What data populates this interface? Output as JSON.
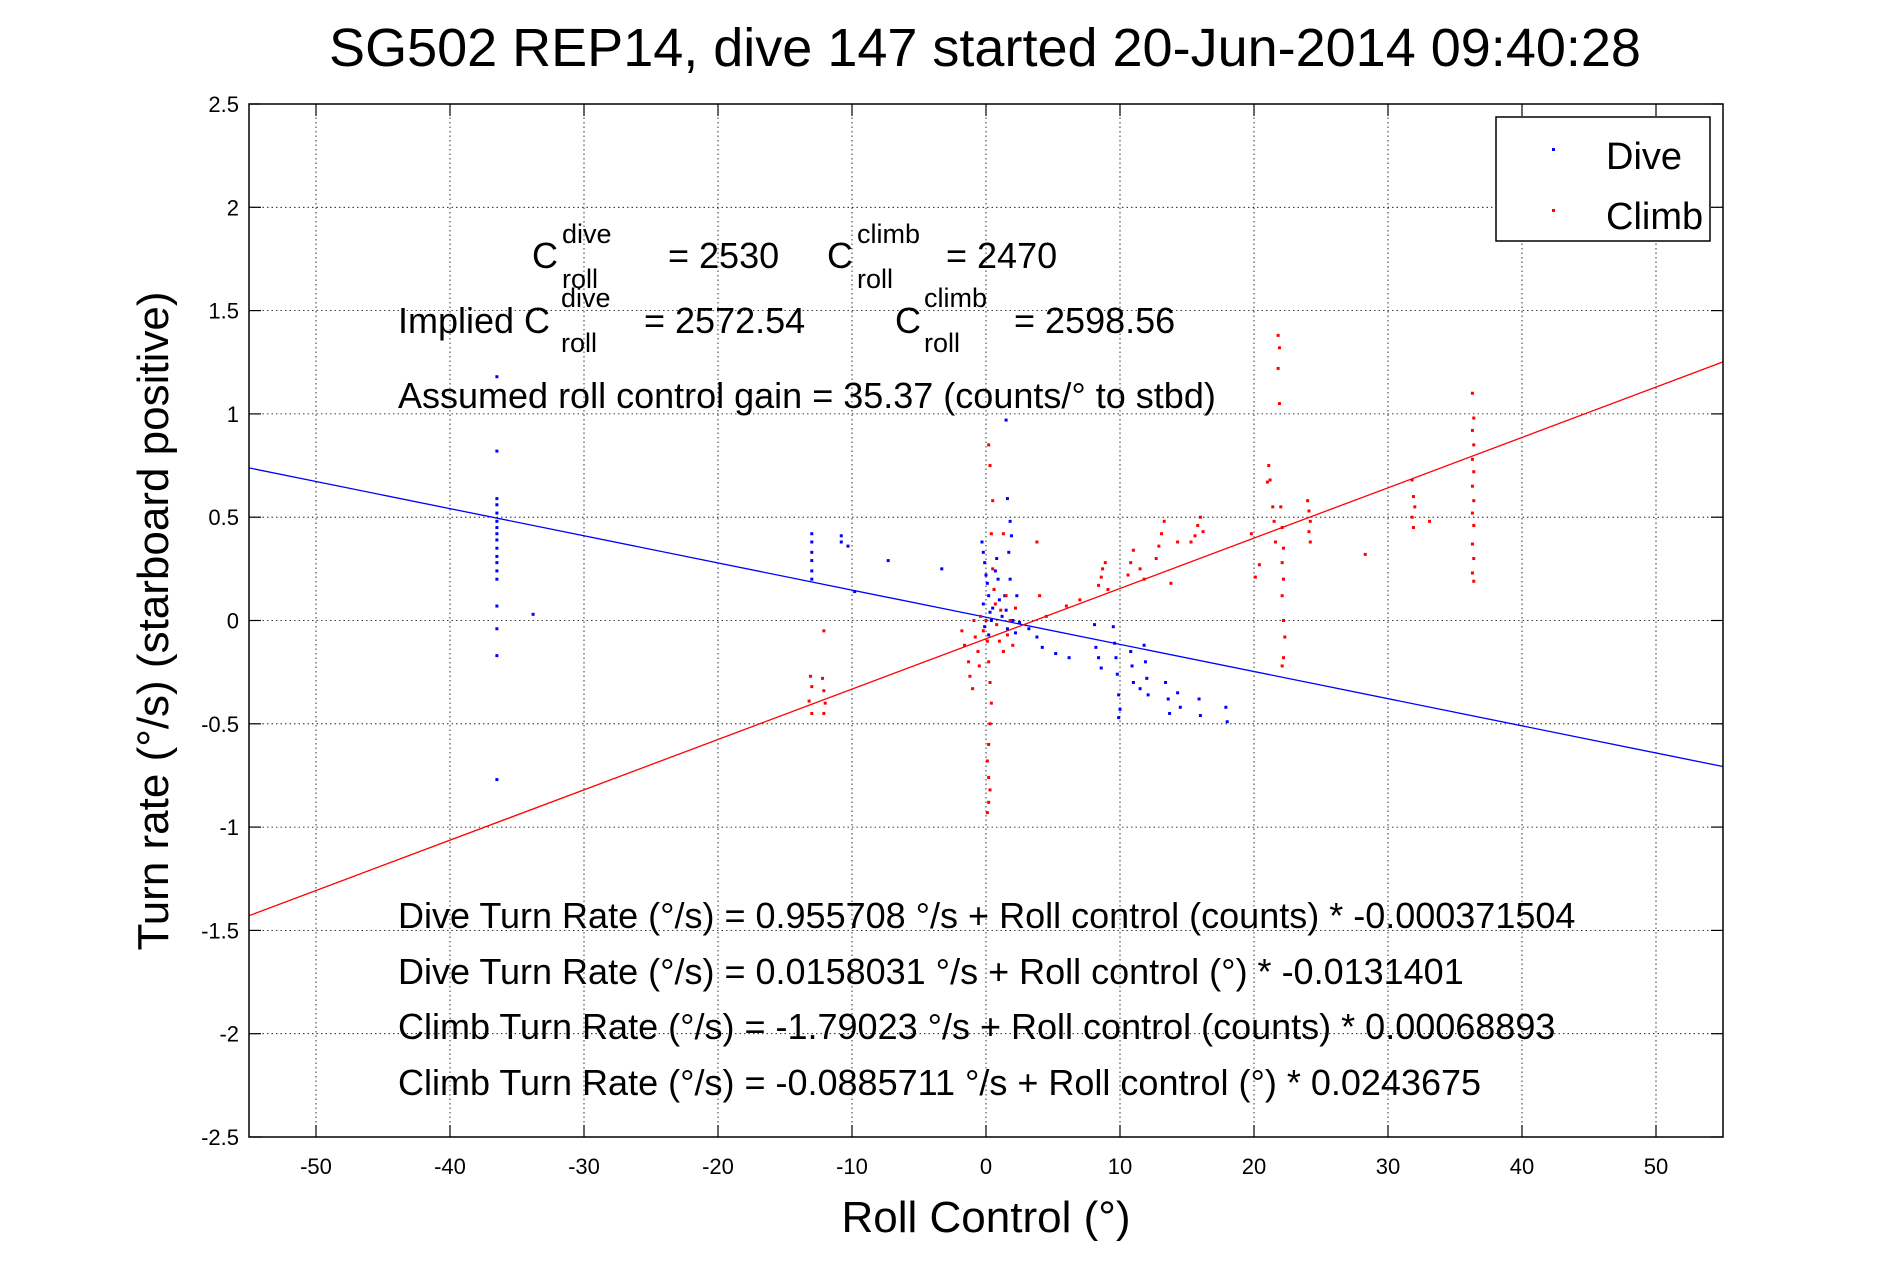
{
  "chart_data": {
    "type": "scatter",
    "title": "SG502 REP14, dive 147 started 20-Jun-2014 09:40:28",
    "xlabel": "Roll Control (°)",
    "ylabel": "Turn rate (°/s) (starboard positive)",
    "xlim": [
      -55,
      55
    ],
    "ylim": [
      -2.5,
      2.5
    ],
    "xticks": [
      -50,
      -40,
      -30,
      -20,
      -10,
      0,
      10,
      20,
      30,
      40,
      50
    ],
    "yticks": [
      -2.5,
      -2,
      -1.5,
      -1,
      -0.5,
      0,
      0.5,
      1,
      1.5,
      2,
      2.5
    ],
    "xtick_labels": [
      "-50",
      "-40",
      "-30",
      "-20",
      "-10",
      "0",
      "10",
      "20",
      "30",
      "40",
      "50"
    ],
    "ytick_labels": [
      "-2.5",
      "-2",
      "-1.5",
      "-1",
      "-0.5",
      "0",
      "0.5",
      "1",
      "1.5",
      "2",
      "2.5"
    ],
    "grid": true,
    "legend": {
      "placement": "top-right",
      "entries": [
        {
          "label": "Dive",
          "color": "#0000ff"
        },
        {
          "label": "Climb",
          "color": "#ff0000"
        }
      ]
    },
    "annotations": {
      "c_dive": {
        "base": "C",
        "sup": "dive",
        "sub": "roll",
        "value": "= 2530"
      },
      "c_climb": {
        "base": "C",
        "sup": "climb",
        "sub": "roll",
        "value": "= 2470"
      },
      "implied_prefix": "Implied C",
      "implied_dive": {
        "sup": "dive",
        "sub": "roll",
        "value": "= 2572.54"
      },
      "implied_climb": {
        "base": "C",
        "sup": "climb",
        "sub": "roll",
        "value": "= 2598.56"
      },
      "gain": "Assumed roll control gain = 35.37 (counts/° to stbd)",
      "eq1": "Dive Turn Rate (°/s) = 0.955708 °/s + Roll control (counts) * -0.000371504",
      "eq2": "Dive Turn Rate (°/s) = 0.0158031 °/s + Roll control (°) * -0.0131401",
      "eq3": "Climb Turn Rate (°/s) = -1.79023 °/s + Roll control (counts) * 0.00068893",
      "eq4": "Climb Turn Rate (°/s) = -0.0885711 °/s + Roll control (°) * 0.0243675"
    },
    "fit_lines": [
      {
        "series": "Dive",
        "color": "#0000ff",
        "intercept": 0.0158031,
        "slope": -0.0131401
      },
      {
        "series": "Climb",
        "color": "#ff0000",
        "intercept": -0.0885711,
        "slope": 0.0243675
      }
    ],
    "series": [
      {
        "name": "Dive",
        "color": "#0000ff",
        "points": [
          [
            -36.5,
            1.18
          ],
          [
            -36.5,
            0.82
          ],
          [
            -36.5,
            0.59
          ],
          [
            -36.5,
            0.56
          ],
          [
            -36.5,
            0.52
          ],
          [
            -36.5,
            0.48
          ],
          [
            -36.5,
            0.45
          ],
          [
            -36.5,
            0.42
          ],
          [
            -36.5,
            0.39
          ],
          [
            -36.5,
            0.35
          ],
          [
            -36.5,
            0.31
          ],
          [
            -36.5,
            0.28
          ],
          [
            -36.5,
            0.24
          ],
          [
            -36.5,
            0.2
          ],
          [
            -36.5,
            0.07
          ],
          [
            -36.5,
            -0.04
          ],
          [
            -36.5,
            -0.17
          ],
          [
            -36.5,
            -0.77
          ],
          [
            -33.8,
            0.03
          ],
          [
            -13,
            0.42
          ],
          [
            -13,
            0.38
          ],
          [
            -13,
            0.33
          ],
          [
            -13,
            0.29
          ],
          [
            -13,
            0.24
          ],
          [
            -13,
            0.2
          ],
          [
            -10.8,
            0.41
          ],
          [
            -10.8,
            0.38
          ],
          [
            -10.3,
            0.36
          ],
          [
            -9.8,
            0.14
          ],
          [
            -7.3,
            0.29
          ],
          [
            -3.3,
            0.25
          ],
          [
            -0.3,
            0.38
          ],
          [
            -0.2,
            0.33
          ],
          [
            -0.1,
            0.28
          ],
          [
            0.0,
            0.22
          ],
          [
            0.1,
            0.18
          ],
          [
            0.2,
            0.12
          ],
          [
            -0.2,
            0.08
          ],
          [
            0.3,
            0.04
          ],
          [
            0.4,
            0.0
          ],
          [
            -0.1,
            -0.03
          ],
          [
            0.2,
            -0.07
          ],
          [
            0.5,
            0.06
          ],
          [
            0.6,
            0.15
          ],
          [
            0.7,
            0.24
          ],
          [
            0.8,
            0.3
          ],
          [
            0.9,
            0.2
          ],
          [
            1.0,
            0.1
          ],
          [
            1.2,
            0.02
          ],
          [
            1.4,
            0.12
          ],
          [
            1.5,
            0.05
          ],
          [
            1.6,
            -0.04
          ],
          [
            1.8,
            0.2
          ],
          [
            2.0,
            0.0
          ],
          [
            2.2,
            -0.06
          ],
          [
            2.3,
            0.12
          ],
          [
            1.7,
            0.33
          ],
          [
            1.9,
            0.41
          ],
          [
            1.8,
            0.48
          ],
          [
            1.6,
            0.59
          ],
          [
            1.5,
            0.97
          ],
          [
            2.5,
            -0.01
          ],
          [
            3.2,
            -0.04
          ],
          [
            3.8,
            -0.08
          ],
          [
            4.2,
            -0.13
          ],
          [
            5.2,
            -0.16
          ],
          [
            6.2,
            -0.18
          ],
          [
            8.1,
            -0.02
          ],
          [
            8.2,
            -0.13
          ],
          [
            8.4,
            -0.18
          ],
          [
            8.6,
            -0.23
          ],
          [
            9.5,
            -0.03
          ],
          [
            9.6,
            -0.11
          ],
          [
            9.7,
            -0.18
          ],
          [
            9.8,
            -0.26
          ],
          [
            9.9,
            -0.36
          ],
          [
            10.0,
            -0.43
          ],
          [
            9.9,
            -0.47
          ],
          [
            10.8,
            -0.15
          ],
          [
            10.9,
            -0.22
          ],
          [
            11.0,
            -0.3
          ],
          [
            11.5,
            -0.33
          ],
          [
            11.8,
            -0.12
          ],
          [
            11.9,
            -0.2
          ],
          [
            12.0,
            -0.28
          ],
          [
            12.1,
            -0.36
          ],
          [
            13.4,
            -0.3
          ],
          [
            13.6,
            -0.38
          ],
          [
            13.7,
            -0.45
          ],
          [
            14.3,
            -0.35
          ],
          [
            14.5,
            -0.42
          ],
          [
            15.9,
            -0.38
          ],
          [
            16.0,
            -0.46
          ],
          [
            17.9,
            -0.42
          ],
          [
            18.0,
            -0.49
          ]
        ]
      },
      {
        "name": "Climb",
        "color": "#ff0000",
        "points": [
          [
            -13.1,
            -0.27
          ],
          [
            -13.0,
            -0.32
          ],
          [
            -13.2,
            -0.39
          ],
          [
            -13.0,
            -0.45
          ],
          [
            -12.1,
            -0.05
          ],
          [
            -12.2,
            -0.28
          ],
          [
            -12.1,
            -0.34
          ],
          [
            -12.0,
            -0.4
          ],
          [
            -12.1,
            -0.45
          ],
          [
            -1.8,
            -0.05
          ],
          [
            -1.6,
            -0.12
          ],
          [
            -1.3,
            -0.2
          ],
          [
            -1.2,
            -0.27
          ],
          [
            -1.0,
            -0.33
          ],
          [
            -0.9,
            0.0
          ],
          [
            -0.8,
            -0.08
          ],
          [
            -0.6,
            -0.15
          ],
          [
            -0.5,
            -0.22
          ],
          [
            -0.4,
            0.02
          ],
          [
            -0.2,
            -0.05
          ],
          [
            0.0,
            0.0
          ],
          [
            0.1,
            -0.1
          ],
          [
            0.2,
            -0.2
          ],
          [
            0.3,
            -0.3
          ],
          [
            0.4,
            -0.4
          ],
          [
            0.3,
            -0.5
          ],
          [
            0.2,
            -0.6
          ],
          [
            0.1,
            -0.68
          ],
          [
            0.2,
            -0.76
          ],
          [
            0.3,
            -0.82
          ],
          [
            0.2,
            -0.88
          ],
          [
            0.1,
            -0.93
          ],
          [
            0.2,
            0.85
          ],
          [
            0.3,
            0.75
          ],
          [
            0.5,
            0.58
          ],
          [
            0.4,
            0.42
          ],
          [
            0.5,
            0.25
          ],
          [
            0.6,
            0.15
          ],
          [
            0.7,
            0.08
          ],
          [
            0.8,
            -0.02
          ],
          [
            1.0,
            -0.1
          ],
          [
            1.1,
            0.05
          ],
          [
            1.3,
            -0.15
          ],
          [
            1.5,
            0.12
          ],
          [
            1.6,
            -0.07
          ],
          [
            1.8,
            0.0
          ],
          [
            2.0,
            -0.12
          ],
          [
            2.2,
            0.06
          ],
          [
            1.3,
            0.42
          ],
          [
            3.8,
            0.38
          ],
          [
            4.0,
            0.12
          ],
          [
            4.5,
            0.02
          ],
          [
            6.0,
            0.07
          ],
          [
            7.0,
            0.1
          ],
          [
            8.4,
            0.17
          ],
          [
            8.6,
            0.21
          ],
          [
            8.7,
            0.25
          ],
          [
            8.9,
            0.28
          ],
          [
            9.1,
            0.15
          ],
          [
            10.6,
            0.22
          ],
          [
            10.8,
            0.28
          ],
          [
            11.0,
            0.34
          ],
          [
            11.5,
            0.25
          ],
          [
            11.8,
            0.2
          ],
          [
            12.7,
            0.3
          ],
          [
            12.9,
            0.36
          ],
          [
            13.1,
            0.42
          ],
          [
            13.3,
            0.48
          ],
          [
            13.8,
            0.18
          ],
          [
            14.3,
            0.38
          ],
          [
            15.3,
            0.38
          ],
          [
            15.6,
            0.41
          ],
          [
            15.8,
            0.46
          ],
          [
            16.0,
            0.5
          ],
          [
            16.2,
            0.43
          ],
          [
            19.8,
            0.42
          ],
          [
            20.1,
            0.21
          ],
          [
            20.4,
            0.27
          ],
          [
            21.0,
            0.67
          ],
          [
            21.1,
            0.75
          ],
          [
            21.2,
            0.68
          ],
          [
            21.4,
            0.55
          ],
          [
            21.5,
            0.48
          ],
          [
            21.6,
            0.38
          ],
          [
            21.8,
            1.38
          ],
          [
            21.9,
            1.32
          ],
          [
            21.8,
            1.22
          ],
          [
            21.9,
            1.05
          ],
          [
            22.0,
            0.55
          ],
          [
            22.1,
            0.45
          ],
          [
            22.2,
            0.35
          ],
          [
            22.1,
            0.28
          ],
          [
            22.2,
            0.2
          ],
          [
            22.1,
            0.12
          ],
          [
            22.2,
            0.0
          ],
          [
            22.3,
            -0.08
          ],
          [
            22.2,
            -0.18
          ],
          [
            22.1,
            -0.22
          ],
          [
            24.0,
            0.58
          ],
          [
            24.1,
            0.53
          ],
          [
            24.2,
            0.48
          ],
          [
            24.1,
            0.43
          ],
          [
            24.2,
            0.38
          ],
          [
            28.3,
            0.32
          ],
          [
            31.8,
            0.68
          ],
          [
            31.9,
            0.6
          ],
          [
            32.0,
            0.55
          ],
          [
            31.8,
            0.5
          ],
          [
            31.9,
            0.45
          ],
          [
            33.1,
            0.48
          ],
          [
            36.3,
            1.1
          ],
          [
            36.4,
            0.98
          ],
          [
            36.3,
            0.92
          ],
          [
            36.4,
            0.85
          ],
          [
            36.3,
            0.78
          ],
          [
            36.4,
            0.72
          ],
          [
            36.3,
            0.65
          ],
          [
            36.4,
            0.58
          ],
          [
            36.3,
            0.52
          ],
          [
            36.4,
            0.46
          ],
          [
            36.3,
            0.37
          ],
          [
            36.4,
            0.3
          ],
          [
            36.3,
            0.23
          ],
          [
            36.4,
            0.19
          ]
        ]
      }
    ]
  }
}
